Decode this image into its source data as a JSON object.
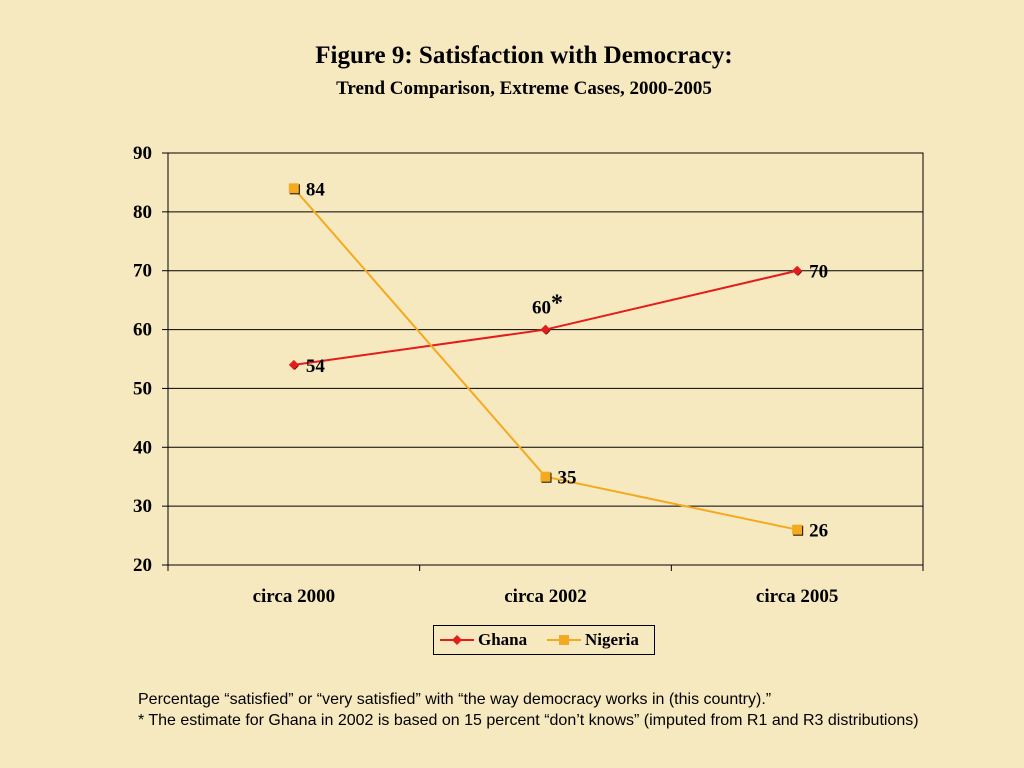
{
  "chart_data": {
    "type": "line",
    "title": "Figure 9:  Satisfaction with Democracy:",
    "subtitle": "Trend Comparison, Extreme Cases, 2000-2005",
    "categories": [
      "circa 2000",
      "circa 2002",
      "circa 2005"
    ],
    "ylim": [
      20,
      90
    ],
    "yticks": [
      20,
      30,
      40,
      50,
      60,
      70,
      80,
      90
    ],
    "grid": true,
    "legend_position": "bottom",
    "series": [
      {
        "name": "Ghana",
        "values": [
          54,
          60,
          70
        ],
        "labels": [
          "54",
          "60*",
          "70"
        ],
        "color": "#e31c1c",
        "marker": "diamond"
      },
      {
        "name": "Nigeria",
        "values": [
          84,
          35,
          26
        ],
        "labels": [
          "84",
          "35",
          "26"
        ],
        "color": "#f5a91e",
        "marker": "square"
      }
    ]
  },
  "footnotes": [
    "Percentage “satisfied” or “very satisfied”  with  “the way democracy works in (this country).”",
    "* The estimate for Ghana in 2002 is based on 15 percent “don’t knows” (imputed from R1 and R3 distributions)"
  ]
}
